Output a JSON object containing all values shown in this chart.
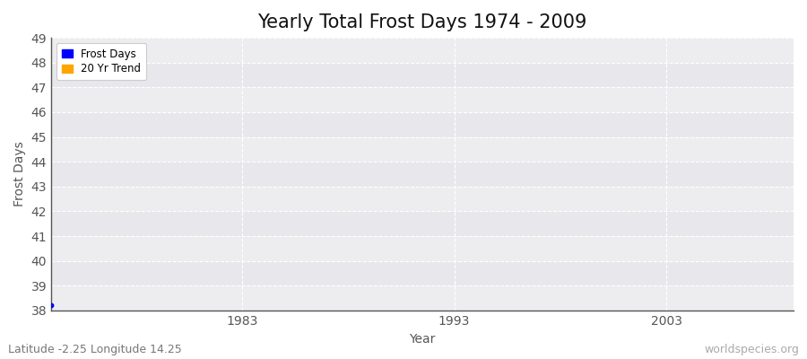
{
  "title": "Yearly Total Frost Days 1974 - 2009",
  "xlabel": "Year",
  "ylabel": "Frost Days",
  "subtitle": "Latitude -2.25 Longitude 14.25",
  "watermark": "worldspecies.org",
  "xlim": [
    1974,
    2009
  ],
  "ylim": [
    38,
    49
  ],
  "yticks": [
    38,
    39,
    40,
    41,
    42,
    43,
    44,
    45,
    46,
    47,
    48,
    49
  ],
  "xticks": [
    1983,
    1993,
    2003
  ],
  "frost_days_x": [
    1974
  ],
  "frost_days_y": [
    38.2
  ],
  "frost_color": "#0000ff",
  "trend_color": "#ffa500",
  "bg_color": "#e8e8ec",
  "grid_color": "#ffffff",
  "legend_frost_label": "Frost Days",
  "legend_trend_label": "20 Yr Trend",
  "title_fontsize": 15,
  "label_fontsize": 10,
  "tick_fontsize": 10,
  "subtitle_fontsize": 9,
  "tick_color": "#555555",
  "label_color": "#333333",
  "title_color": "#111111"
}
